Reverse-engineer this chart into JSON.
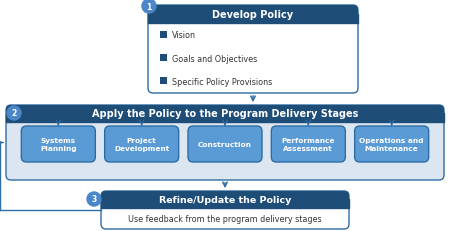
{
  "dark_blue": "#1e4d78",
  "mid_blue": "#2e6da4",
  "box_blue": "#4a86c8",
  "light_blue_fill": "#dce6f1",
  "stage_fill": "#5b9bd5",
  "white": "#ffffff",
  "arrow_color": "#2e6da4",
  "text_dark": "#333333",
  "step1_title": "Develop Policy",
  "step1_bullets": [
    "Vision",
    "Goals and Objectives",
    "Specific Policy Provisions"
  ],
  "step2_title": "Apply the Policy to the Program Delivery Stages",
  "step2_stages": [
    "Systems\nPlanning",
    "Project\nDevelopment",
    "Construction",
    "Performance\nAssessment",
    "Operations and\nMaintenance"
  ],
  "step3_title": "Refine/Update the Policy",
  "step3_sub": "Use feedback from the program delivery stages",
  "fig_w": 4.5,
  "fig_h": 2.32,
  "dpi": 100
}
